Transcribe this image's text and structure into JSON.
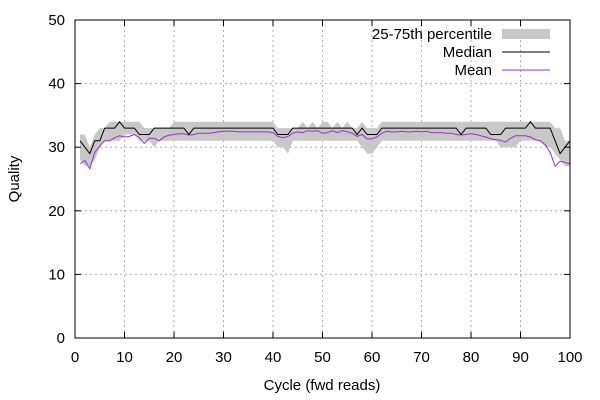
{
  "chart_data": {
    "type": "line",
    "xlabel": "Cycle (fwd reads)",
    "ylabel": "Quality",
    "xlim": [
      0,
      100
    ],
    "ylim": [
      0,
      50
    ],
    "xticks": [
      0,
      10,
      20,
      30,
      40,
      50,
      60,
      70,
      80,
      90,
      100
    ],
    "yticks": [
      0,
      10,
      20,
      30,
      40,
      50
    ],
    "grid": true,
    "legend_position": "top-right",
    "x": [
      1,
      2,
      3,
      4,
      5,
      6,
      7,
      8,
      9,
      10,
      11,
      12,
      13,
      14,
      15,
      16,
      17,
      18,
      19,
      20,
      21,
      22,
      23,
      24,
      25,
      26,
      27,
      28,
      29,
      30,
      31,
      32,
      33,
      34,
      35,
      36,
      37,
      38,
      39,
      40,
      41,
      42,
      43,
      44,
      45,
      46,
      47,
      48,
      49,
      50,
      51,
      52,
      53,
      54,
      55,
      56,
      57,
      58,
      59,
      60,
      61,
      62,
      63,
      64,
      65,
      66,
      67,
      68,
      69,
      70,
      71,
      72,
      73,
      74,
      75,
      76,
      77,
      78,
      79,
      80,
      81,
      82,
      83,
      84,
      85,
      86,
      87,
      88,
      89,
      90,
      91,
      92,
      93,
      94,
      95,
      96,
      97,
      98,
      99,
      100
    ],
    "series": [
      {
        "name": "25-75th percentile",
        "kind": "band",
        "color": "#c8c8c8",
        "lower": [
          28,
          27,
          27,
          28,
          30,
          31,
          31,
          31,
          31,
          32,
          32,
          32,
          31,
          31,
          31,
          30,
          31,
          31,
          31,
          31,
          31,
          31,
          31,
          31,
          31,
          31,
          31,
          31,
          31,
          31,
          31,
          31,
          31,
          31,
          31,
          31,
          31,
          31,
          31,
          31,
          30,
          30,
          29,
          31,
          31,
          31,
          31,
          31,
          31,
          31,
          31,
          31,
          31,
          31,
          31,
          31,
          31,
          30,
          29,
          29,
          30,
          31,
          31,
          31,
          31,
          31,
          31,
          31,
          31,
          31,
          31,
          31,
          31,
          31,
          31,
          31,
          31,
          31,
          31,
          31,
          31,
          31,
          31,
          31,
          31,
          30,
          30,
          30,
          30,
          31,
          31,
          31,
          31,
          31,
          30,
          30,
          29,
          28,
          27,
          27
        ],
        "upper": [
          32,
          32,
          30,
          32,
          33,
          33,
          34,
          34,
          34,
          34,
          34,
          34,
          34,
          33,
          33,
          33,
          33,
          33,
          33,
          34,
          34,
          34,
          34,
          34,
          34,
          34,
          34,
          34,
          34,
          34,
          34,
          34,
          34,
          34,
          34,
          34,
          34,
          34,
          34,
          34,
          33,
          33,
          33,
          33,
          33,
          34,
          33,
          34,
          33,
          34,
          34,
          33,
          34,
          33,
          34,
          33,
          33,
          34,
          33,
          33,
          33,
          34,
          34,
          34,
          34,
          34,
          34,
          34,
          34,
          34,
          34,
          34,
          34,
          34,
          34,
          34,
          34,
          34,
          34,
          34,
          34,
          34,
          34,
          34,
          34,
          34,
          34,
          34,
          34,
          34,
          34,
          34,
          34,
          34,
          34,
          34,
          33,
          33,
          31,
          31
        ]
      },
      {
        "name": "Median",
        "color": "#000000",
        "values": [
          31,
          30,
          29,
          31,
          31,
          33,
          33,
          33,
          34,
          33,
          33,
          33,
          32,
          32,
          32,
          33,
          33,
          33,
          33,
          33,
          33,
          33,
          32,
          33,
          33,
          33,
          33,
          33,
          33,
          33,
          33,
          33,
          33,
          33,
          33,
          33,
          33,
          33,
          33,
          33,
          32,
          32,
          32,
          33,
          33,
          33,
          33,
          33,
          33,
          33,
          33,
          33,
          33,
          33,
          33,
          33,
          32,
          33,
          32,
          32,
          32,
          33,
          33,
          33,
          33,
          33,
          33,
          33,
          33,
          33,
          33,
          33,
          33,
          33,
          33,
          33,
          33,
          32,
          33,
          33,
          33,
          33,
          33,
          32,
          32,
          32,
          33,
          33,
          33,
          33,
          33,
          34,
          33,
          33,
          33,
          33,
          31,
          29,
          30,
          31
        ]
      },
      {
        "name": "Mean",
        "color": "#9b30c8",
        "values": [
          27.4,
          27.9,
          26.6,
          29.2,
          30.2,
          31.0,
          31.0,
          31.5,
          31.8,
          31.6,
          31.7,
          32.0,
          31.5,
          30.6,
          31.4,
          31.4,
          31.0,
          31.6,
          31.9,
          32.0,
          32.1,
          32.1,
          31.9,
          32.0,
          32.2,
          32.2,
          32.2,
          32.3,
          32.4,
          32.5,
          32.5,
          32.5,
          32.4,
          32.4,
          32.4,
          32.4,
          32.4,
          32.4,
          32.4,
          32.3,
          31.7,
          31.5,
          31.7,
          32.2,
          32.4,
          32.3,
          32.6,
          32.5,
          32.6,
          32.2,
          32.3,
          32.6,
          32.3,
          32.6,
          32.4,
          32.2,
          31.7,
          32.0,
          31.3,
          31.3,
          31.6,
          32.2,
          32.5,
          32.4,
          32.4,
          32.5,
          32.4,
          32.4,
          32.5,
          32.4,
          32.5,
          32.3,
          32.3,
          32.3,
          32.2,
          32.2,
          32.0,
          31.9,
          32.0,
          32.1,
          32.0,
          31.8,
          31.6,
          31.3,
          31.2,
          31.1,
          30.8,
          31.4,
          31.8,
          31.8,
          31.8,
          31.6,
          31.2,
          31.0,
          30.4,
          29.2,
          27.0,
          27.8,
          27.6,
          27.4
        ]
      }
    ]
  }
}
